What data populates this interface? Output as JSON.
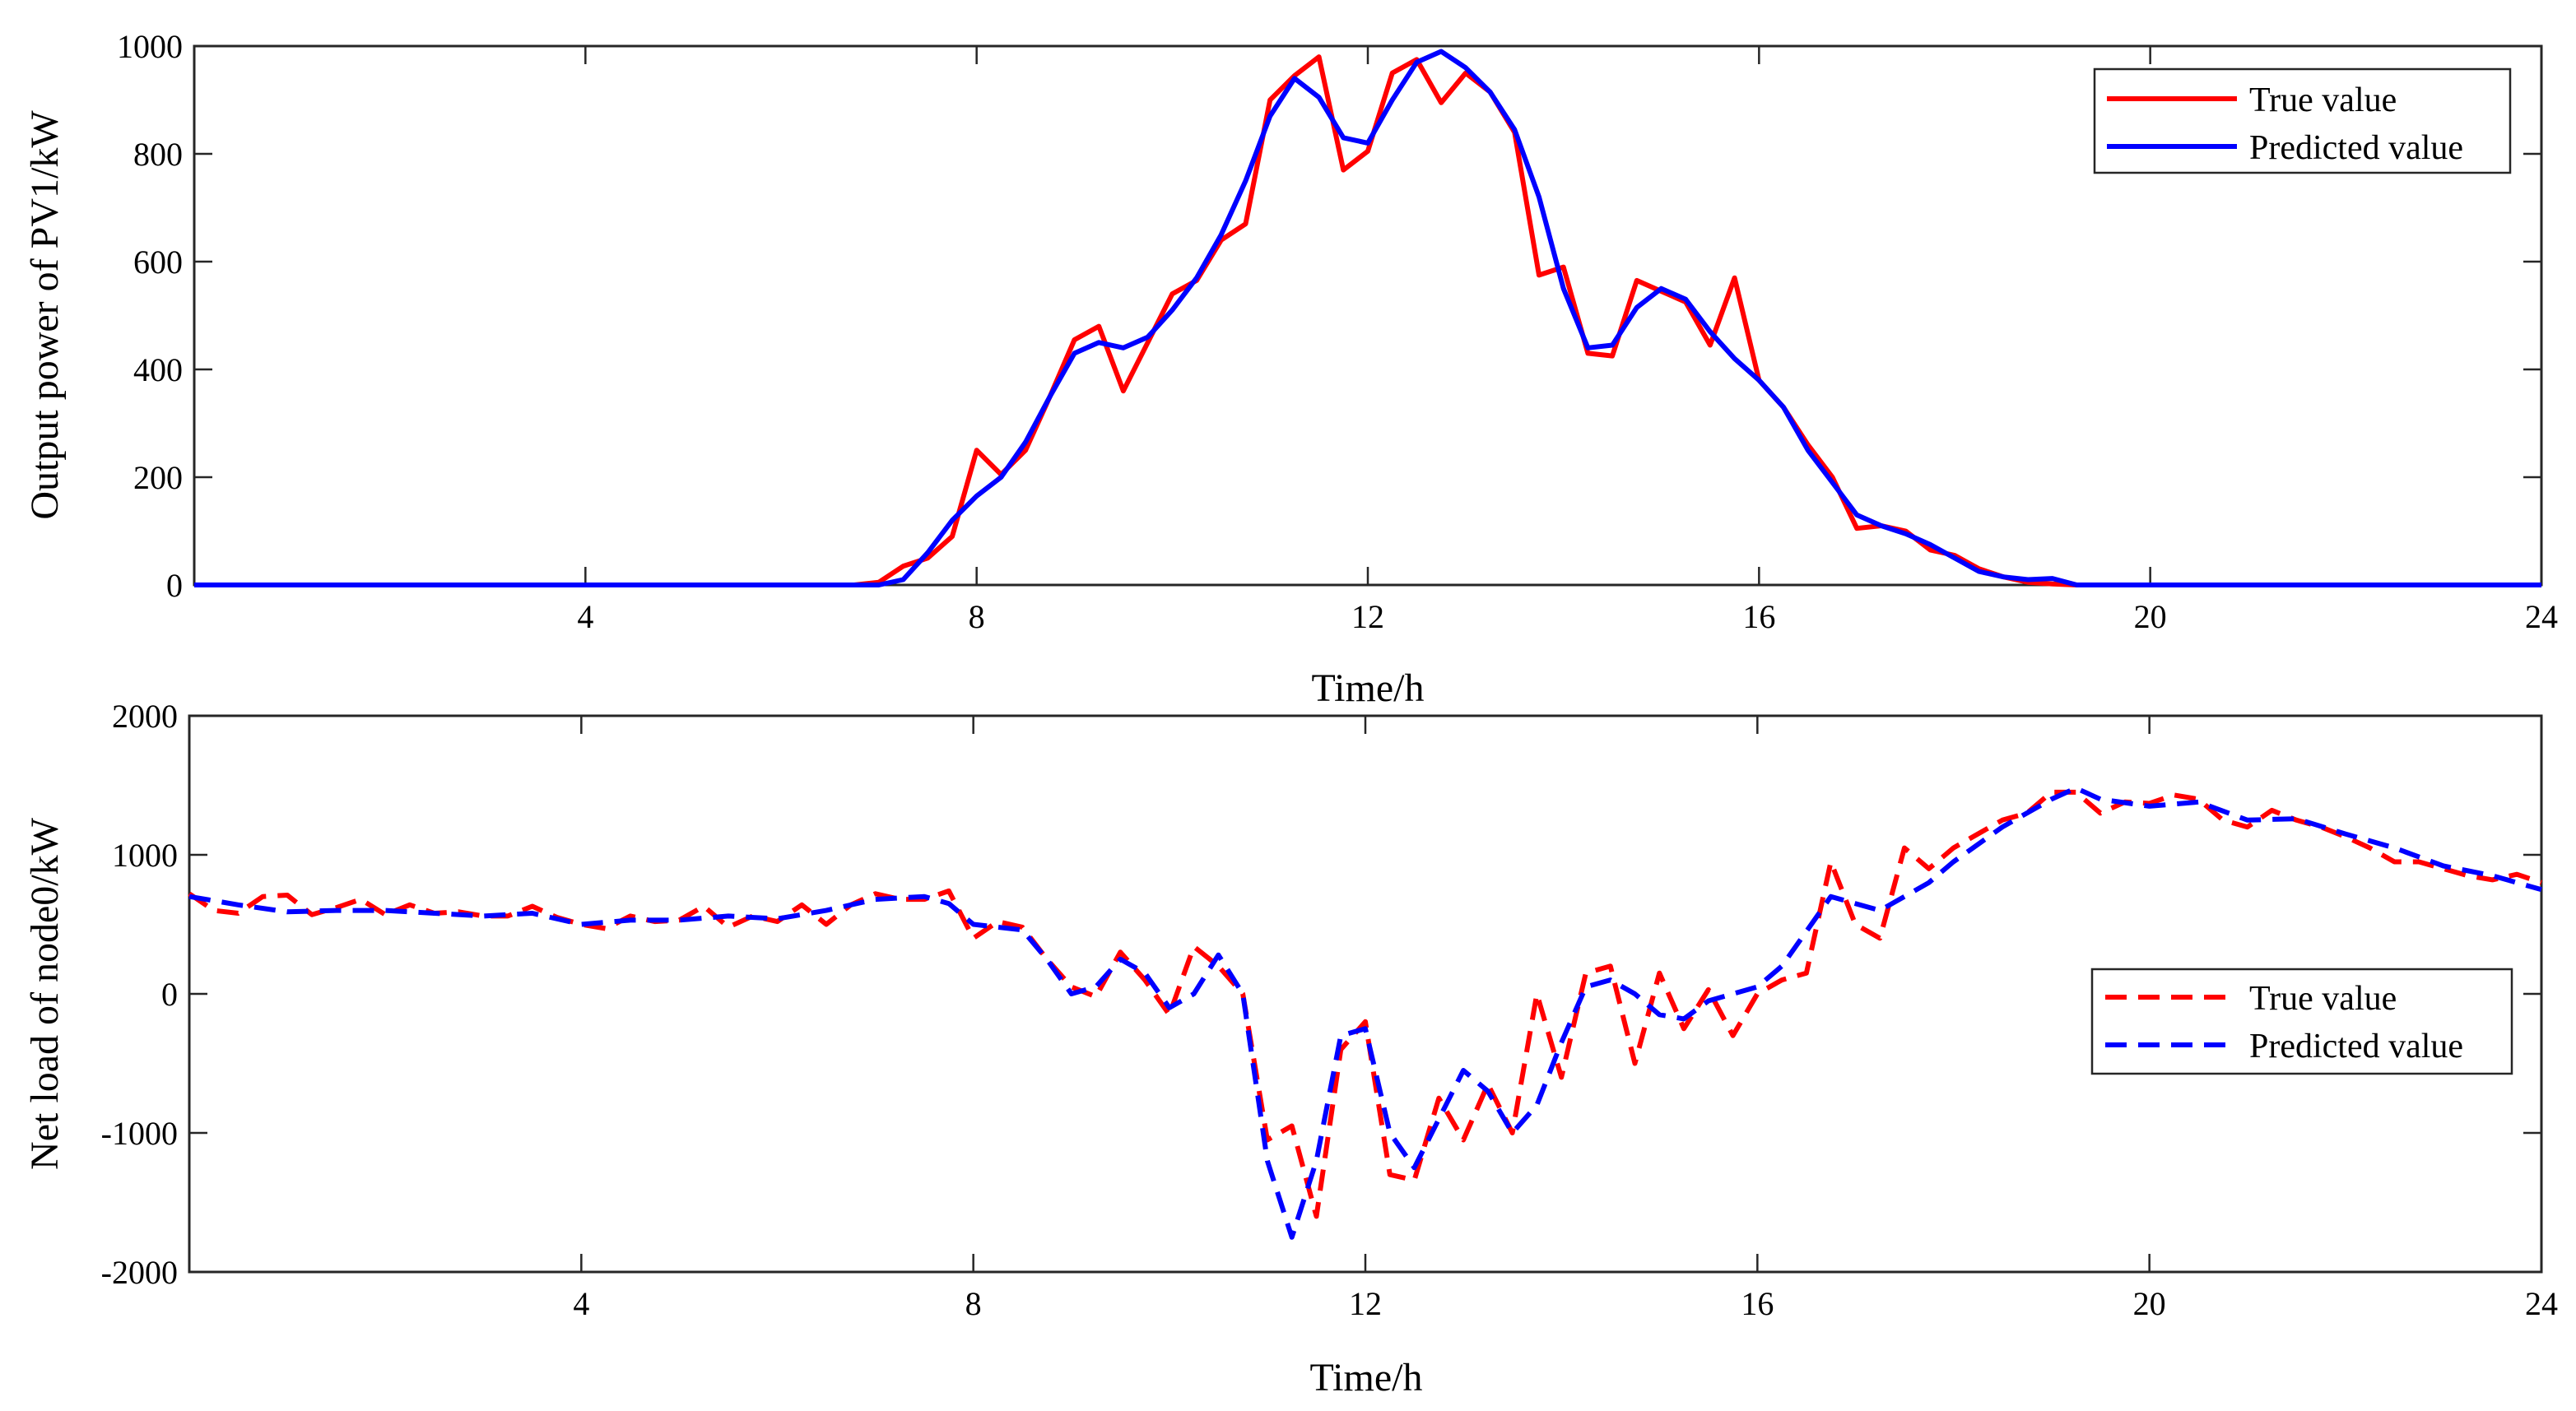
{
  "chart_data": [
    {
      "type": "line",
      "title": "",
      "xlabel": "Time/h",
      "ylabel": "Output power of PV1/kW",
      "xlim": [
        0,
        24
      ],
      "ylim": [
        0,
        1000
      ],
      "xticks": [
        4,
        8,
        12,
        16,
        20,
        24
      ],
      "yticks": [
        0,
        200,
        400,
        600,
        800,
        1000
      ],
      "grid": false,
      "legend_position": "top-right",
      "series": [
        {
          "name": "True value",
          "color": "#ff0000",
          "line_style": "solid",
          "x": [
            0,
            6.75,
            7.0,
            7.25,
            7.5,
            7.75,
            8.0,
            8.25,
            8.5,
            8.75,
            9.0,
            9.25,
            9.5,
            9.75,
            10.0,
            10.25,
            10.5,
            10.75,
            11.0,
            11.25,
            11.5,
            11.75,
            12.0,
            12.25,
            12.5,
            12.75,
            13.0,
            13.25,
            13.5,
            13.75,
            14.0,
            14.25,
            14.5,
            14.75,
            15.0,
            15.25,
            15.5,
            15.75,
            16.0,
            16.25,
            16.5,
            16.75,
            17.0,
            17.25,
            17.5,
            17.75,
            18.0,
            18.25,
            18.5,
            18.75,
            19.0,
            19.25,
            24
          ],
          "y": [
            0,
            0,
            5,
            35,
            50,
            90,
            250,
            205,
            250,
            350,
            455,
            480,
            360,
            450,
            540,
            565,
            640,
            670,
            900,
            945,
            980,
            770,
            805,
            950,
            975,
            895,
            950,
            915,
            840,
            575,
            590,
            430,
            425,
            565,
            545,
            525,
            445,
            570,
            380,
            330,
            260,
            200,
            105,
            110,
            100,
            65,
            55,
            30,
            15,
            5,
            2,
            0,
            0
          ]
        },
        {
          "name": "Predicted value",
          "color": "#0000ff",
          "line_style": "solid",
          "x": [
            0,
            7.0,
            7.25,
            7.5,
            7.75,
            8.0,
            8.25,
            8.5,
            8.75,
            9.0,
            9.25,
            9.5,
            9.75,
            10.0,
            10.25,
            10.5,
            10.75,
            11.0,
            11.25,
            11.5,
            11.75,
            12.0,
            12.25,
            12.5,
            12.75,
            13.0,
            13.25,
            13.5,
            13.75,
            14.0,
            14.25,
            14.5,
            14.75,
            15.0,
            15.25,
            15.5,
            15.75,
            16.0,
            16.25,
            16.5,
            16.75,
            17.0,
            17.25,
            17.5,
            17.75,
            18.0,
            18.25,
            18.5,
            18.75,
            19.0,
            19.25,
            24
          ],
          "y": [
            0,
            0,
            10,
            60,
            120,
            165,
            200,
            265,
            350,
            430,
            450,
            440,
            460,
            510,
            570,
            650,
            750,
            870,
            940,
            905,
            830,
            820,
            900,
            970,
            990,
            960,
            915,
            845,
            720,
            550,
            440,
            445,
            515,
            550,
            530,
            470,
            420,
            380,
            330,
            250,
            190,
            130,
            110,
            95,
            75,
            50,
            25,
            15,
            10,
            12,
            0,
            0
          ]
        }
      ]
    },
    {
      "type": "line",
      "title": "",
      "xlabel": "Time/h",
      "ylabel": "Net load of node0/kW",
      "xlim": [
        0,
        24
      ],
      "ylim": [
        -2000,
        2000
      ],
      "xticks": [
        4,
        8,
        12,
        16,
        20,
        24
      ],
      "yticks": [
        -2000,
        -1000,
        0,
        1000,
        2000
      ],
      "grid": false,
      "legend_position": "right",
      "series": [
        {
          "name": "True value",
          "color": "#ff0000",
          "line_style": "dashed",
          "x": [
            0,
            0.25,
            0.5,
            0.75,
            1.0,
            1.25,
            1.5,
            1.75,
            2.0,
            2.25,
            2.5,
            2.75,
            3.0,
            3.25,
            3.5,
            3.75,
            4.0,
            4.25,
            4.5,
            4.75,
            5.0,
            5.25,
            5.5,
            5.75,
            6.0,
            6.25,
            6.5,
            6.75,
            7.0,
            7.25,
            7.5,
            7.75,
            8.0,
            8.25,
            8.5,
            8.75,
            9.0,
            9.25,
            9.5,
            9.75,
            10.0,
            10.25,
            10.5,
            10.75,
            11.0,
            11.25,
            11.5,
            11.75,
            12.0,
            12.25,
            12.5,
            12.75,
            13.0,
            13.25,
            13.5,
            13.75,
            14.0,
            14.25,
            14.5,
            14.75,
            15.0,
            15.25,
            15.5,
            15.75,
            16.0,
            16.25,
            16.5,
            16.75,
            17.0,
            17.25,
            17.5,
            17.75,
            18.0,
            18.25,
            18.5,
            18.75,
            19.0,
            19.25,
            19.5,
            19.75,
            20.0,
            20.25,
            20.5,
            20.75,
            21.0,
            21.25,
            21.5,
            21.75,
            22.0,
            22.25,
            22.5,
            22.75,
            23.0,
            23.25,
            23.5,
            23.75,
            24.0
          ],
          "y": [
            720,
            600,
            580,
            700,
            710,
            570,
            620,
            680,
            570,
            640,
            580,
            590,
            560,
            560,
            630,
            550,
            500,
            470,
            560,
            520,
            530,
            630,
            480,
            560,
            520,
            640,
            500,
            640,
            720,
            680,
            680,
            740,
            400,
            520,
            480,
            250,
            50,
            -20,
            300,
            100,
            -150,
            340,
            200,
            0,
            -1050,
            -950,
            -1600,
            -400,
            -200,
            -1300,
            -1340,
            -750,
            -1050,
            -650,
            -1000,
            0,
            -600,
            150,
            200,
            -500,
            150,
            -250,
            30,
            -300,
            0,
            100,
            150,
            950,
            500,
            400,
            1050,
            900,
            1050,
            1150,
            1250,
            1300,
            1450,
            1450,
            1300,
            1380,
            1370,
            1430,
            1400,
            1250,
            1200,
            1320,
            1250,
            1200,
            1130,
            1050,
            950,
            950,
            900,
            850,
            820,
            860,
            800
          ]
        },
        {
          "name": "Predicted value",
          "color": "#0000ff",
          "line_style": "dashed",
          "x": [
            0,
            0.5,
            1.0,
            1.5,
            2.0,
            2.5,
            3.0,
            3.5,
            4.0,
            4.5,
            5.0,
            5.5,
            6.0,
            6.5,
            7.0,
            7.5,
            7.75,
            8.0,
            8.5,
            8.75,
            9.0,
            9.25,
            9.5,
            9.75,
            10.0,
            10.25,
            10.5,
            10.75,
            11.0,
            11.25,
            11.5,
            11.75,
            12.0,
            12.25,
            12.5,
            12.75,
            13.0,
            13.25,
            13.5,
            13.75,
            14.0,
            14.25,
            14.5,
            14.75,
            15.0,
            15.25,
            15.5,
            15.75,
            16.0,
            16.25,
            16.5,
            16.75,
            17.0,
            17.25,
            17.5,
            17.75,
            18.0,
            18.5,
            19.0,
            19.25,
            19.5,
            20.0,
            20.5,
            21.0,
            21.5,
            22.0,
            22.5,
            23.0,
            23.5,
            24.0
          ],
          "y": [
            700,
            640,
            590,
            600,
            600,
            580,
            560,
            580,
            500,
            530,
            530,
            560,
            540,
            600,
            680,
            700,
            650,
            500,
            460,
            250,
            0,
            50,
            250,
            150,
            -100,
            0,
            280,
            0,
            -1200,
            -1750,
            -1200,
            -300,
            -250,
            -1000,
            -1250,
            -900,
            -550,
            -700,
            -1000,
            -800,
            -350,
            50,
            100,
            0,
            -150,
            -180,
            -50,
            0,
            50,
            200,
            450,
            700,
            650,
            600,
            700,
            800,
            950,
            1200,
            1400,
            1480,
            1400,
            1350,
            1380,
            1250,
            1260,
            1150,
            1050,
            920,
            850,
            750
          ]
        }
      ]
    }
  ]
}
